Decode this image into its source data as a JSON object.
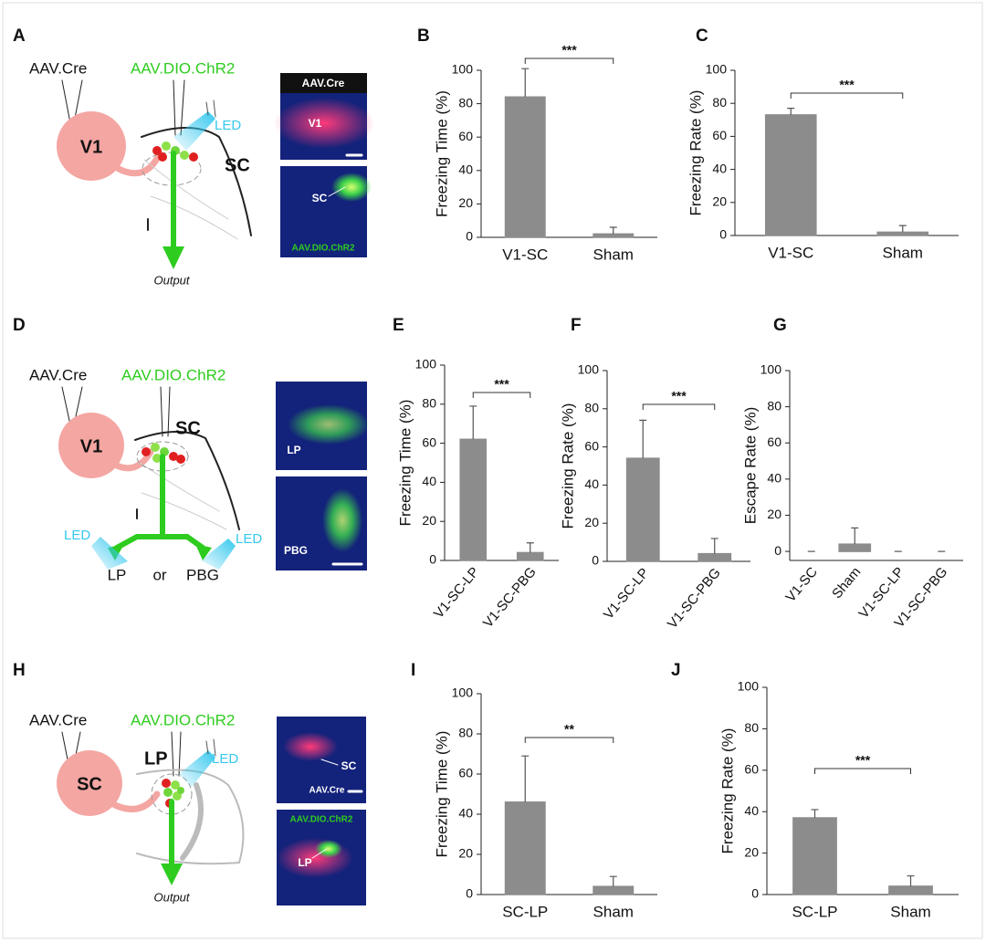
{
  "diagrams": [
    {
      "label": "A",
      "source": "AAV.Cre",
      "target": "AAV.DIO.ChR2",
      "region": "V1",
      "site": "SC",
      "light": "LED",
      "output": "Output",
      "image_top_title": "AAV.Cre",
      "image_top_region": "V1",
      "image_bottom_region": "SC",
      "image_bottom_title": "AAV.DIO.ChR2"
    },
    {
      "label": "D",
      "source": "AAV.Cre",
      "target": "AAV.DIO.ChR2",
      "region": "V1",
      "site": "SC",
      "light_left": "LED",
      "light_right": "LED",
      "branch_left": "LP",
      "branch_or": "or",
      "branch_right": "PBG",
      "image_top_region": "LP",
      "image_bottom_region": "PBG"
    },
    {
      "label": "H",
      "source": "AAV.Cre",
      "target": "AAV.DIO.ChR2",
      "region": "SC",
      "site": "LP",
      "light": "LED",
      "output": "Output",
      "image_top_region": "SC",
      "image_top_title": "AAV.Cre",
      "image_bottom_title": "AAV.DIO.ChR2",
      "image_bottom_region": "LP"
    }
  ],
  "chart_data": [
    {
      "type": "bar",
      "panel_label": "B",
      "y_label": "Freezing Time (%)",
      "categories": [
        "V1-SC",
        "Sham"
      ],
      "values": [
        84,
        2
      ],
      "errors": [
        17,
        4
      ],
      "color": "#8c8c8c",
      "ylim": [
        0,
        100
      ],
      "yticks": [
        0,
        20,
        40,
        60,
        80,
        100
      ],
      "significance": "***"
    },
    {
      "type": "bar",
      "panel_label": "C",
      "y_label": "Freezing Rate (%)",
      "categories": [
        "V1-SC",
        "Sham"
      ],
      "values": [
        73,
        2
      ],
      "errors": [
        4,
        4
      ],
      "color": "#8c8c8c",
      "ylim": [
        0,
        100
      ],
      "yticks": [
        0,
        20,
        40,
        60,
        80,
        100
      ],
      "significance": "***"
    },
    {
      "type": "bar",
      "panel_label": "E",
      "y_label": "Freezing Time (%)",
      "categories": [
        "V1-SC-LP",
        "V1-SC-PBG"
      ],
      "values": [
        62,
        4
      ],
      "errors": [
        17,
        5
      ],
      "color": "#8c8c8c",
      "ylim": [
        0,
        100
      ],
      "yticks": [
        0,
        20,
        40,
        60,
        80,
        100
      ],
      "significance": "***"
    },
    {
      "type": "bar",
      "panel_label": "F",
      "y_label": "Freezing Rate (%)",
      "categories": [
        "V1-SC-LP",
        "V1-SC-PBG"
      ],
      "values": [
        54,
        4
      ],
      "errors": [
        20,
        8
      ],
      "color": "#8c8c8c",
      "ylim": [
        0,
        100
      ],
      "yticks": [
        0,
        20,
        40,
        60,
        80,
        100
      ],
      "significance": "***"
    },
    {
      "type": "bar",
      "panel_label": "G",
      "y_label": "Escape Rate (%)",
      "categories": [
        "V1-SC",
        "Sham",
        "V1-SC-LP",
        "V1-SC-PBG"
      ],
      "values": [
        0,
        4,
        0,
        0
      ],
      "errors": [
        0,
        9,
        0,
        0
      ],
      "color": "#8c8c8c",
      "ylim": [
        -5,
        100
      ],
      "yticks": [
        0,
        20,
        40,
        60,
        80,
        100
      ]
    },
    {
      "type": "bar",
      "panel_label": "I",
      "y_label": "Freezing Time (%)",
      "categories": [
        "SC-LP",
        "Sham"
      ],
      "values": [
        46,
        4
      ],
      "errors": [
        23,
        5
      ],
      "color": "#8c8c8c",
      "ylim": [
        0,
        100
      ],
      "yticks": [
        0,
        20,
        40,
        60,
        80,
        100
      ],
      "significance": "**"
    },
    {
      "type": "bar",
      "panel_label": "J",
      "y_label": "Freezing Rate (%)",
      "categories": [
        "SC-LP",
        "Sham"
      ],
      "values": [
        37,
        4
      ],
      "errors": [
        4,
        5
      ],
      "color": "#8c8c8c",
      "ylim": [
        0,
        100
      ],
      "yticks": [
        0,
        20,
        40,
        60,
        80,
        100
      ],
      "significance": "***"
    }
  ]
}
